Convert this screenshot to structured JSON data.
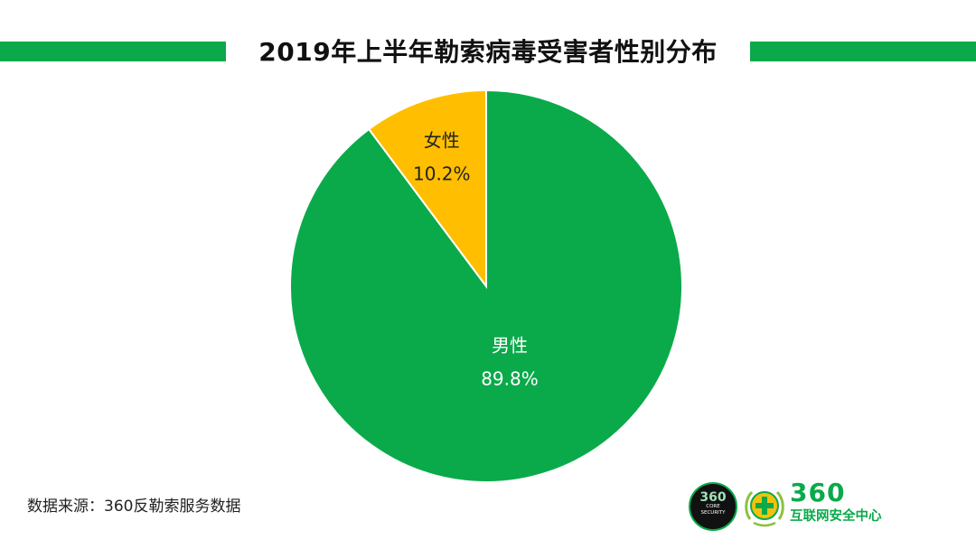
{
  "title": "2019年上半年勒索病毒受害者性别分布",
  "source": "数据来源：360反勒索服务数据",
  "colors": {
    "accent": "#0aaa4a",
    "male": "#0aaa4a",
    "female": "#ffbf00"
  },
  "logos": {
    "core_big": "360",
    "core_line1": "CORE",
    "core_line2": "SECURITY",
    "brand_number": "360",
    "brand_name": "互联网安全中心",
    "emblem_icon": "plus-cross-emblem-icon"
  },
  "chart_data": {
    "type": "pie",
    "title": "2019年上半年勒索病毒受害者性别分布",
    "start_angle": "12 o'clock, clockwise",
    "slices": [
      {
        "label": "男性",
        "value": 89.8,
        "display": "89.8%",
        "color": "#0aaa4a",
        "label_color": "#ffffff"
      },
      {
        "label": "女性",
        "value": 10.2,
        "display": "10.2%",
        "color": "#ffbf00",
        "label_color": "#222222"
      }
    ]
  }
}
